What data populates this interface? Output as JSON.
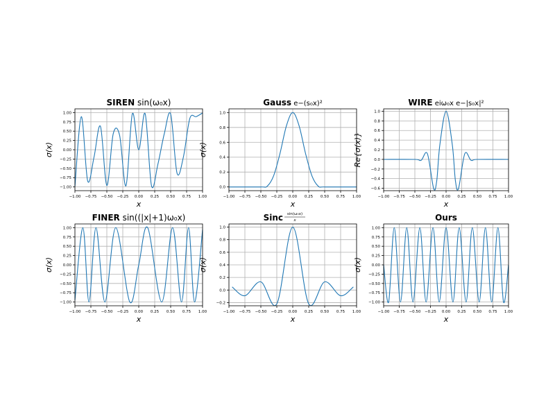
{
  "chart_data": [
    {
      "type": "line",
      "title": {
        "name": "SIREN",
        "formula": "sin(ω₀x)"
      },
      "xlabel": "x",
      "ylabel": "σ(x)",
      "xlim": [
        -1.0,
        1.0
      ],
      "ylim": [
        -1.1,
        1.1
      ],
      "xticks": [
        -1.0,
        -0.75,
        -0.5,
        -0.25,
        0.0,
        0.25,
        0.5,
        0.75,
        1.0
      ],
      "xtick_labels": [
        "−1.00",
        "−0.75",
        "−0.50",
        "−0.25",
        "0.00",
        "0.25",
        "0.50",
        "0.75",
        "1.00"
      ],
      "yticks": [
        -1.0,
        -0.75,
        -0.5,
        -0.25,
        0.0,
        0.25,
        0.5,
        0.75,
        1.0
      ],
      "ytick_labels": [
        "−1.00",
        "−0.75",
        "−0.50",
        "−0.25",
        "0.00",
        "0.25",
        "0.50",
        "0.75",
        "1.00"
      ],
      "grid": true,
      "series": [
        {
          "x": [
            -1.0,
            -0.9,
            -0.8,
            -0.7,
            -0.6,
            -0.5,
            -0.4,
            -0.3,
            -0.2,
            -0.1,
            0.0,
            0.1,
            0.2,
            0.3,
            0.4,
            0.5,
            0.6,
            0.7,
            0.8,
            0.9,
            1.0
          ],
          "y": [
            -0.99,
            0.89,
            -0.84,
            -0.19,
            0.63,
            -0.96,
            0.43,
            0.39,
            -0.97,
            0.97,
            0.0,
            0.97,
            -0.97,
            -0.39,
            0.43,
            0.96,
            -0.63,
            -0.19,
            0.84,
            0.89,
            0.99
          ]
        }
      ]
    },
    {
      "type": "line",
      "title": {
        "name": "Gauss",
        "formula": "e^{−(s₀x)²}"
      },
      "xlabel": "x",
      "ylabel": "σ(x)",
      "xlim": [
        -1.0,
        1.0
      ],
      "ylim": [
        -0.05,
        1.05
      ],
      "xticks": [
        -1.0,
        -0.75,
        -0.5,
        -0.25,
        0.0,
        0.25,
        0.5,
        0.75,
        1.0
      ],
      "xtick_labels": [
        "−1.00",
        "−0.75",
        "−0.50",
        "−0.25",
        "0.00",
        "0.25",
        "0.50",
        "0.75",
        "1.00"
      ],
      "yticks": [
        0.0,
        0.2,
        0.4,
        0.6,
        0.8,
        1.0
      ],
      "ytick_labels": [
        "0.0",
        "0.2",
        "0.4",
        "0.6",
        "0.8",
        "1.0"
      ],
      "grid": true,
      "series": [
        {
          "x": [
            -1.0,
            -0.5,
            -0.4,
            -0.3,
            -0.2,
            -0.1,
            0.0,
            0.1,
            0.2,
            0.3,
            0.4,
            0.5,
            1.0
          ],
          "y": [
            0.0,
            0.0,
            0.01,
            0.15,
            0.45,
            0.82,
            1.0,
            0.82,
            0.45,
            0.15,
            0.01,
            0.0,
            0.0
          ]
        }
      ]
    },
    {
      "type": "line",
      "title": {
        "name": "WIRE",
        "formula": "e^{iω₀x} e^{−|s₀x|²}"
      },
      "xlabel": "x",
      "ylabel": "Re{σ(x)}",
      "xlim": [
        -1.0,
        1.0
      ],
      "ylim": [
        -0.65,
        1.05
      ],
      "xticks": [
        -1.0,
        -0.75,
        -0.5,
        -0.25,
        0.0,
        0.25,
        0.5,
        0.75,
        1.0
      ],
      "xtick_labels": [
        "−1.00",
        "−0.75",
        "−0.50",
        "−0.25",
        "0.00",
        "0.25",
        "0.50",
        "0.75",
        "1.00"
      ],
      "yticks": [
        -0.6,
        -0.4,
        -0.2,
        0.0,
        0.2,
        0.4,
        0.6,
        0.8,
        1.0
      ],
      "ytick_labels": [
        "−0.6",
        "−0.4",
        "−0.2",
        "0.0",
        "0.2",
        "0.4",
        "0.6",
        "0.8",
        "1.0"
      ],
      "grid": true,
      "series": [
        {
          "x": [
            -1.0,
            -0.5,
            -0.4,
            -0.3,
            -0.2,
            -0.15,
            -0.1,
            0.0,
            0.1,
            0.15,
            0.2,
            0.3,
            0.4,
            0.5,
            1.0
          ],
          "y": [
            0.0,
            0.0,
            -0.02,
            0.12,
            -0.6,
            -0.45,
            0.3,
            1.0,
            0.3,
            -0.45,
            -0.6,
            0.12,
            -0.02,
            0.0,
            0.0
          ]
        }
      ]
    },
    {
      "type": "line",
      "title": {
        "name": "FINER",
        "formula": "sin((|x|+1)ω₀x)"
      },
      "xlabel": "x",
      "ylabel": "σ(x)",
      "xlim": [
        -1.0,
        1.0
      ],
      "ylim": [
        -1.1,
        1.1
      ],
      "xticks": [
        -1.0,
        -0.75,
        -0.5,
        -0.25,
        0.0,
        0.25,
        0.5,
        0.75,
        1.0
      ],
      "xtick_labels": [
        "−1.00",
        "−0.75",
        "−0.50",
        "−0.25",
        "0.00",
        "0.25",
        "0.50",
        "0.75",
        "1.00"
      ],
      "yticks": [
        -1.0,
        -0.75,
        -0.5,
        -0.25,
        0.0,
        0.25,
        0.5,
        0.75,
        1.0
      ],
      "ytick_labels": [
        "−1.00",
        "−0.75",
        "−0.50",
        "−0.25",
        "0.00",
        "0.25",
        "0.50",
        "0.75",
        "1.00"
      ],
      "grid": true,
      "series": [
        {
          "x": [
            -1.0,
            -0.875,
            -0.78,
            -0.67,
            -0.53,
            -0.36,
            -0.14,
            0.0,
            0.14,
            0.36,
            0.53,
            0.67,
            0.78,
            0.875,
            1.0
          ],
          "y": [
            -0.95,
            1.0,
            -1.0,
            1.0,
            -1.0,
            1.0,
            -1.0,
            0.0,
            1.0,
            -1.0,
            1.0,
            -1.0,
            1.0,
            -1.0,
            0.95
          ]
        }
      ]
    },
    {
      "type": "line",
      "title": {
        "name": "Sinc",
        "formula_num": "sin(ω₀x)",
        "formula_den": "x"
      },
      "xlabel": "x",
      "ylabel": "σ(x)",
      "xlim": [
        -1.0,
        1.0
      ],
      "ylim": [
        -0.25,
        1.05
      ],
      "xticks": [
        -1.0,
        -0.75,
        -0.5,
        -0.25,
        0.0,
        0.25,
        0.5,
        0.75,
        1.0
      ],
      "xtick_labels": [
        "−1.00",
        "−0.75",
        "−0.50",
        "−0.25",
        "0.00",
        "0.25",
        "0.50",
        "0.75",
        "1.00"
      ],
      "yticks": [
        -0.2,
        0.0,
        0.2,
        0.4,
        0.6,
        0.8,
        1.0
      ],
      "ytick_labels": [
        "−0.2",
        "0.0",
        "0.2",
        "0.4",
        "0.6",
        "0.8",
        "1.0"
      ],
      "grid": true,
      "series": [
        {
          "x": [
            -0.95,
            -0.75,
            -0.5,
            -0.25,
            0.0,
            0.25,
            0.5,
            0.75,
            0.95
          ],
          "y": [
            0.05,
            -0.09,
            0.13,
            -0.22,
            1.0,
            -0.22,
            0.13,
            -0.09,
            0.05
          ]
        }
      ]
    },
    {
      "type": "line",
      "title": {
        "name": "Ours",
        "formula": ""
      },
      "xlabel": "x",
      "ylabel": "σ(x)",
      "xlim": [
        -1.0,
        1.0
      ],
      "ylim": [
        -1.1,
        1.1
      ],
      "xticks": [
        -1.0,
        -0.75,
        -0.5,
        -0.25,
        0.0,
        0.25,
        0.5,
        0.75,
        1.0
      ],
      "xtick_labels": [
        "−1.00",
        "−0.75",
        "−0.50",
        "−0.25",
        "0.00",
        "0.25",
        "0.50",
        "0.75",
        "1.00"
      ],
      "yticks": [
        -1.0,
        -0.75,
        -0.5,
        -0.25,
        0.0,
        0.25,
        0.5,
        0.75,
        1.0
      ],
      "ytick_labels": [
        "−1.00",
        "−0.75",
        "−0.50",
        "−0.25",
        "0.00",
        "0.25",
        "0.50",
        "0.75",
        "1.00"
      ],
      "grid": true,
      "series": [
        {
          "x": [
            -1.0,
            -0.92,
            -0.83,
            -0.73,
            -0.63,
            -0.53,
            -0.42,
            -0.32,
            -0.21,
            -0.11,
            0.0,
            0.11,
            0.21,
            0.32,
            0.42,
            0.53,
            0.63,
            0.73,
            0.83,
            0.92,
            1.0
          ],
          "y": [
            0.0,
            -1.0,
            1.0,
            -1.0,
            1.0,
            -1.0,
            1.0,
            -1.0,
            1.0,
            -1.0,
            1.0,
            -1.0,
            1.0,
            -1.0,
            1.0,
            -1.0,
            1.0,
            -1.0,
            1.0,
            -1.0,
            0.0
          ]
        }
      ]
    }
  ],
  "colors": {
    "line": "#1f77b4",
    "grid": "#b0b0b0",
    "axes": "#000000"
  }
}
